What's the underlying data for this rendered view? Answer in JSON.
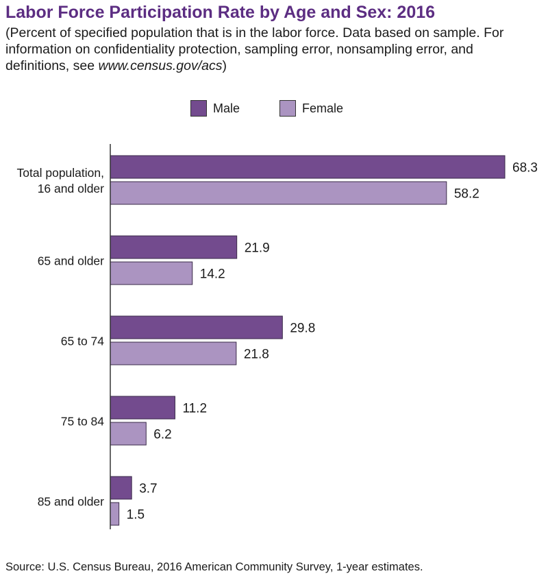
{
  "title": "Labor Force Participation Rate by Age and Sex: 2016",
  "subtitle": {
    "text": "(Percent of specified population that is in the labor force. Data based on sample. For information on confidentiality protection, sampling error, nonsampling error, and definitions, see ",
    "url": "www.census.gov/acs",
    "close": ")"
  },
  "legend": [
    {
      "label": "Male",
      "color": "#734b8e"
    },
    {
      "label": "Female",
      "color": "#ab94c1"
    }
  ],
  "source": "Source: U.S. Census Bureau, 2016 American Community Survey, 1-year estimates.",
  "chart_data": {
    "type": "bar",
    "orientation": "horizontal",
    "title": "Labor Force Participation Rate by Age and Sex: 2016",
    "xlabel": "",
    "ylabel": "",
    "xlim": [
      0,
      70
    ],
    "grid": false,
    "legend_position": "top-center",
    "categories": [
      [
        "Total population,",
        "16 and older"
      ],
      [
        "65 and older"
      ],
      [
        "65 to 74"
      ],
      [
        "75 to 84"
      ],
      [
        "85 and older"
      ]
    ],
    "series": [
      {
        "name": "Male",
        "color": "#734b8e",
        "values": [
          68.3,
          21.9,
          29.8,
          11.2,
          3.7
        ],
        "labels": [
          "68.3",
          "21.9",
          "29.8",
          "11.2",
          "3.7"
        ]
      },
      {
        "name": "Female",
        "color": "#ab94c1",
        "values": [
          58.2,
          14.2,
          21.8,
          6.2,
          1.5
        ],
        "labels": [
          "58.2",
          "14.2",
          "21.8",
          "6.2",
          "1.5"
        ]
      }
    ]
  }
}
